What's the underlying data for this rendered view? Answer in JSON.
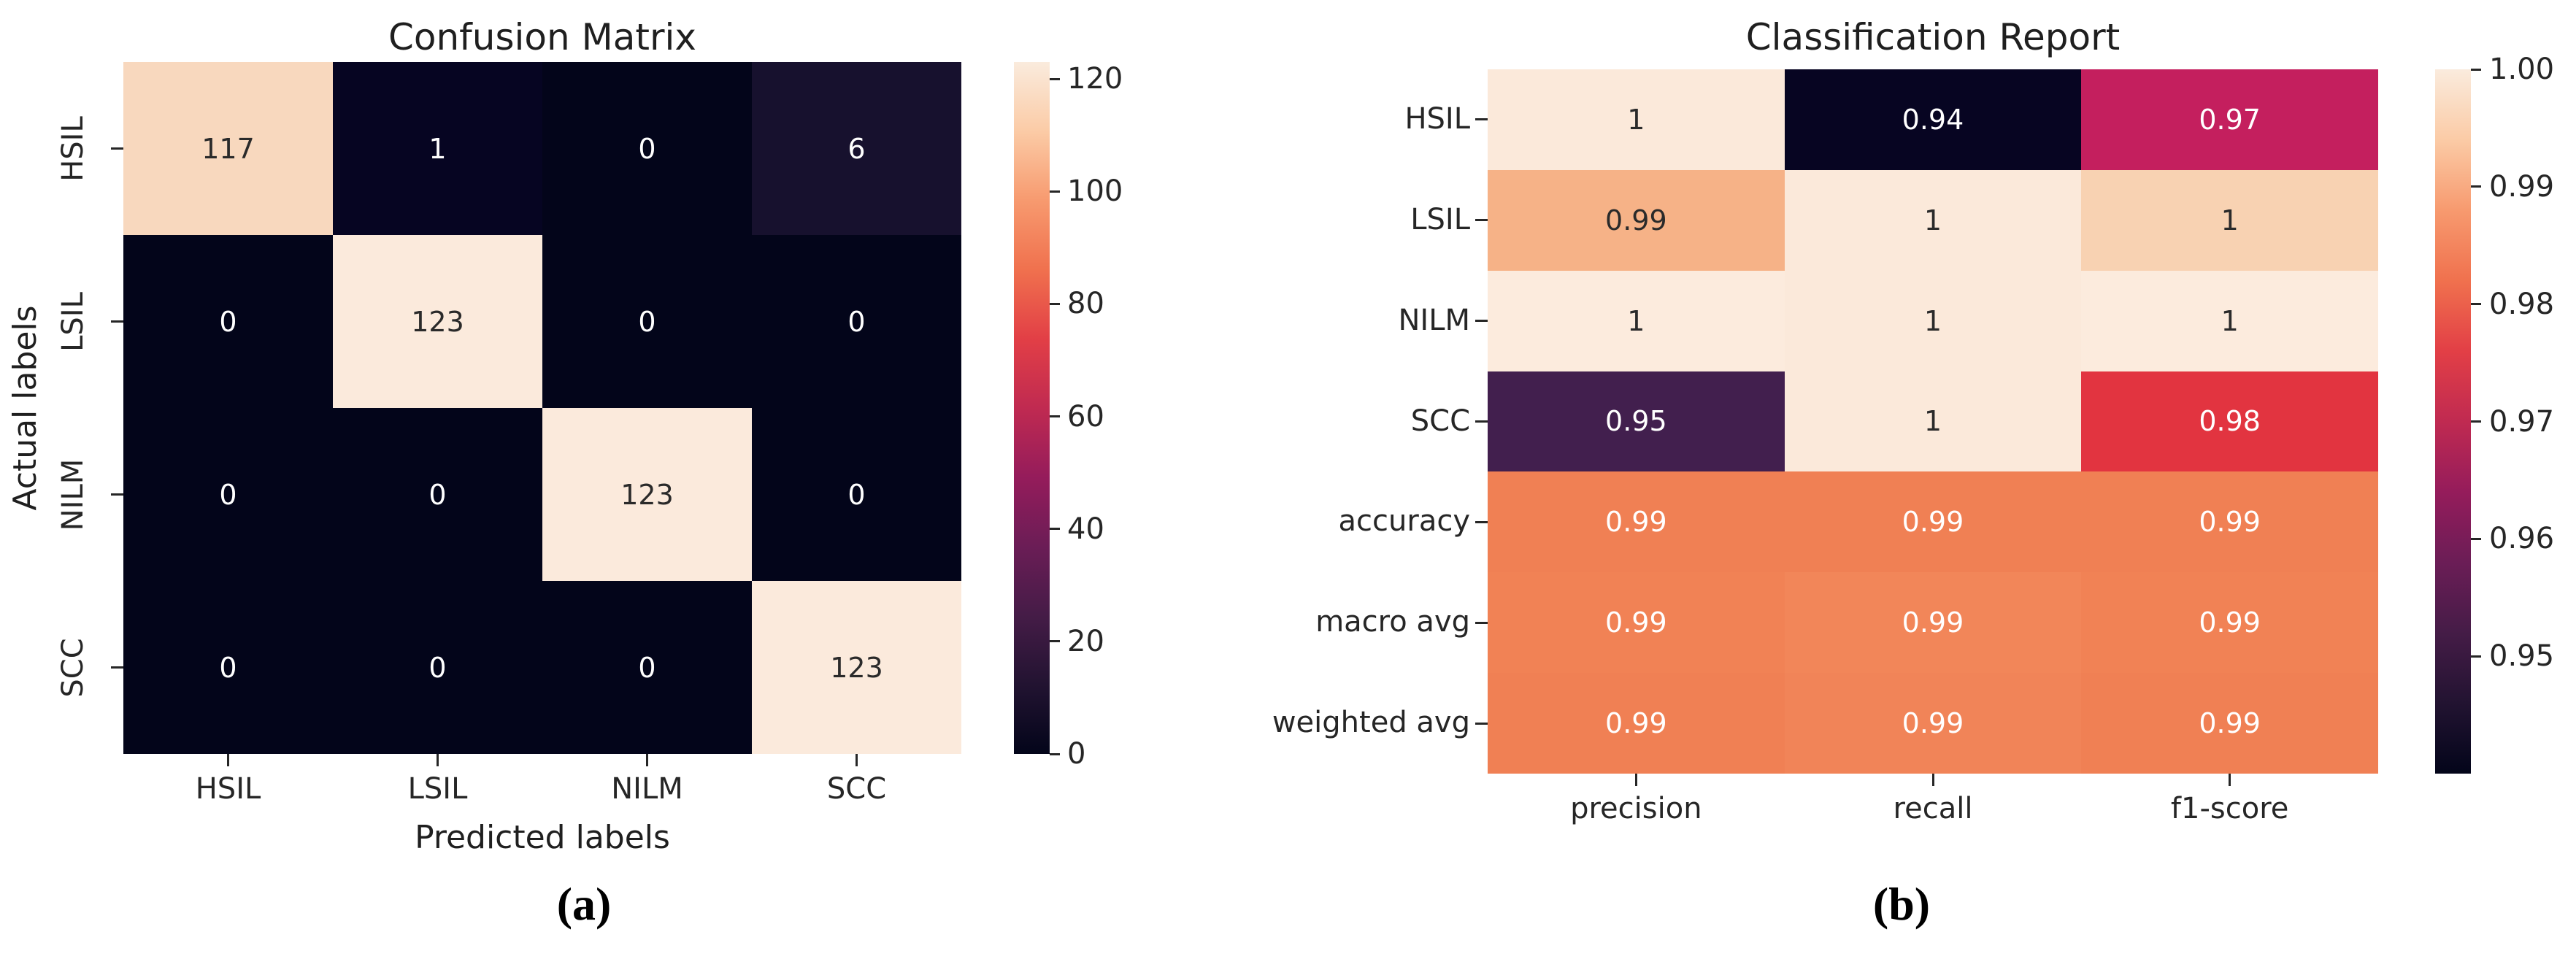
{
  "figure_title": "Confusion Matrix and Classification Report heatmaps",
  "panels": [
    {
      "title": "Confusion Matrix",
      "xlabel": "Predicted labels",
      "ylabel": "Actual labels",
      "caption": "(a)"
    },
    {
      "title": "Classification Report",
      "xlabel": "",
      "ylabel": "",
      "caption": "(b)"
    }
  ],
  "chart_data": [
    {
      "type": "heatmap",
      "title": "Confusion Matrix",
      "xlabel": "Predicted labels",
      "ylabel": "Actual labels",
      "x_categories": [
        "HSIL",
        "LSIL",
        "NILM",
        "SCC"
      ],
      "y_categories": [
        "HSIL",
        "LSIL",
        "NILM",
        "SCC"
      ],
      "values": [
        [
          "117",
          "1",
          "0",
          "6"
        ],
        [
          "0",
          "123",
          "0",
          "0"
        ],
        [
          "0",
          "0",
          "123",
          "0"
        ],
        [
          "0",
          "0",
          "0",
          "123"
        ]
      ],
      "vmin": 0,
      "vmax": 123,
      "colorbar_ticks": [
        "120",
        "100",
        "80",
        "60",
        "40",
        "20",
        "0"
      ],
      "y_tick_rotated": true,
      "legend_position": "right-colorbar",
      "grid": false,
      "cell_colors": [
        [
          "#f8d8be",
          "#060522",
          "#03051a",
          "#17112e"
        ],
        [
          "#03051a",
          "#fbeadc",
          "#03051a",
          "#03051a"
        ],
        [
          "#03051a",
          "#03051a",
          "#fbeadc",
          "#03051a"
        ],
        [
          "#03051a",
          "#03051a",
          "#03051a",
          "#fbeadc"
        ]
      ],
      "cell_text_colors": [
        [
          "#2a2a2a",
          "#ffffff",
          "#ffffff",
          "#ffffff"
        ],
        [
          "#ffffff",
          "#2a2a2a",
          "#ffffff",
          "#ffffff"
        ],
        [
          "#ffffff",
          "#ffffff",
          "#2a2a2a",
          "#ffffff"
        ],
        [
          "#ffffff",
          "#ffffff",
          "#ffffff",
          "#2a2a2a"
        ]
      ]
    },
    {
      "type": "heatmap",
      "title": "Classification Report",
      "xlabel": "",
      "ylabel": "",
      "x_categories": [
        "precision",
        "recall",
        "f1-score"
      ],
      "y_categories": [
        "HSIL",
        "LSIL",
        "NILM",
        "SCC",
        "accuracy",
        "macro avg",
        "weighted avg"
      ],
      "values": [
        [
          "1",
          "0.94",
          "0.97"
        ],
        [
          "0.99",
          "1",
          "1"
        ],
        [
          "1",
          "1",
          "1"
        ],
        [
          "0.95",
          "1",
          "0.98"
        ],
        [
          "0.99",
          "0.99",
          "0.99"
        ],
        [
          "0.99",
          "0.99",
          "0.99"
        ],
        [
          "0.99",
          "0.99",
          "0.99"
        ]
      ],
      "vmin": 0.94,
      "vmax": 1.0,
      "colorbar_ticks": [
        "1.00",
        "0.99",
        "0.98",
        "0.97",
        "0.96",
        "0.95"
      ],
      "y_tick_rotated": false,
      "legend_position": "right-colorbar",
      "grid": false,
      "cell_colors": [
        [
          "#fbe9da",
          "#070522",
          "#c41f5e"
        ],
        [
          "#f6b287",
          "#fbe9da",
          "#f8d2b2"
        ],
        [
          "#fcebdd",
          "#fbe9da",
          "#fcebdd"
        ],
        [
          "#421f4e",
          "#fbe9da",
          "#e23440"
        ],
        [
          "#f08054",
          "#f08054",
          "#f08054"
        ],
        [
          "#f18255",
          "#f28659",
          "#f18255"
        ],
        [
          "#f08054",
          "#f18458",
          "#f08054"
        ]
      ],
      "cell_text_colors": [
        [
          "#2a2a2a",
          "#ffffff",
          "#ffffff"
        ],
        [
          "#2a2a2a",
          "#2a2a2a",
          "#2a2a2a"
        ],
        [
          "#2a2a2a",
          "#2a2a2a",
          "#2a2a2a"
        ],
        [
          "#ffffff",
          "#2a2a2a",
          "#ffffff"
        ],
        [
          "#ffffff",
          "#ffffff",
          "#ffffff"
        ],
        [
          "#ffffff",
          "#ffffff",
          "#ffffff"
        ],
        [
          "#ffffff",
          "#ffffff",
          "#ffffff"
        ]
      ]
    }
  ],
  "style": {
    "background": "#ffffff",
    "text_color": "#212121",
    "tick_color": "#262626",
    "colormap_name": "rocket",
    "colormap_stops_bottom_to_top": [
      "#03051a",
      "#221331",
      "#451c47",
      "#6b1d56",
      "#951c5b",
      "#c02a51",
      "#e23f46",
      "#f0714e",
      "#f79a6f",
      "#fbcba6",
      "#faebdd"
    ],
    "annot_light": "#ffffff",
    "annot_dark": "#2a2a2a"
  }
}
